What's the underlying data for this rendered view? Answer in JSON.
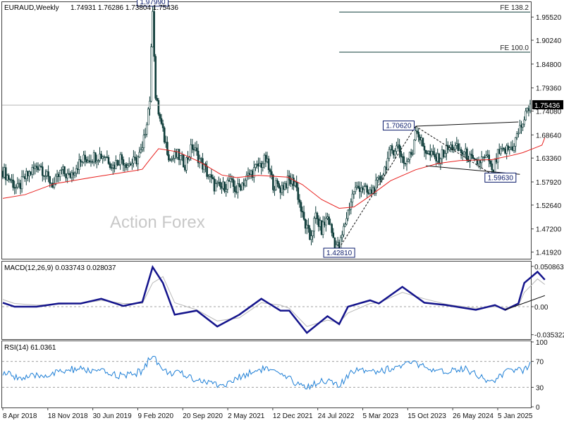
{
  "chart_data": [
    {
      "type": "candlestick",
      "symbol": "EURAUD",
      "timeframe": "Weekly",
      "header": {
        "symbol_timeframe": "EURAUD,Weekly",
        "ohlc": "1.74931 1.76286 1.73804 1.75436"
      },
      "last_price": 1.75436,
      "current_price_label": "1.75436",
      "y_range": [
        1.4056,
        1.9877
      ],
      "y_ticks": [
        "1.95520",
        "1.90240",
        "1.84800",
        "1.79360",
        "1.74080",
        "1.68640",
        "1.63360",
        "1.57920",
        "1.52640",
        "1.47200",
        "1.41920"
      ],
      "x_ticks": [
        "8 Apr 2018",
        "18 Nov 2018",
        "30 Jun 2019",
        "9 Feb 2020",
        "20 Sep 2020",
        "2 May 2021",
        "12 Dec 2021",
        "24 Jul 2022",
        "5 Mar 2023",
        "15 Oct 2023",
        "26 May 2024",
        "5 Jan 2025"
      ],
      "x_dates": [
        "2018-04-08",
        "2025-02-23"
      ],
      "close_path": [
        {
          "date": "2018-04-08",
          "close": 1.604
        },
        {
          "date": "2018-05-13",
          "close": 1.585
        },
        {
          "date": "2018-06-17",
          "close": 1.562
        },
        {
          "date": "2018-07-22",
          "close": 1.588
        },
        {
          "date": "2018-08-26",
          "close": 1.605
        },
        {
          "date": "2018-09-30",
          "close": 1.62
        },
        {
          "date": "2018-11-04",
          "close": 1.589
        },
        {
          "date": "2018-12-09",
          "close": 1.572
        },
        {
          "date": "2019-01-13",
          "close": 1.605
        },
        {
          "date": "2019-02-17",
          "close": 1.59
        },
        {
          "date": "2019-03-24",
          "close": 1.615
        },
        {
          "date": "2019-04-28",
          "close": 1.63
        },
        {
          "date": "2019-06-02",
          "close": 1.635
        },
        {
          "date": "2019-07-07",
          "close": 1.64
        },
        {
          "date": "2019-08-11",
          "close": 1.64
        },
        {
          "date": "2019-09-15",
          "close": 1.615
        },
        {
          "date": "2019-10-20",
          "close": 1.635
        },
        {
          "date": "2019-11-24",
          "close": 1.62
        },
        {
          "date": "2019-12-29",
          "close": 1.625
        },
        {
          "date": "2020-02-02",
          "close": 1.65
        },
        {
          "date": "2020-03-08",
          "close": 1.77
        },
        {
          "date": "2020-03-22",
          "close": 1.9799
        },
        {
          "date": "2020-04-05",
          "close": 1.77
        },
        {
          "date": "2020-05-10",
          "close": 1.69
        },
        {
          "date": "2020-06-14",
          "close": 1.63
        },
        {
          "date": "2020-07-19",
          "close": 1.64
        },
        {
          "date": "2020-08-23",
          "close": 1.62
        },
        {
          "date": "2020-09-27",
          "close": 1.66
        },
        {
          "date": "2020-11-01",
          "close": 1.63
        },
        {
          "date": "2020-12-06",
          "close": 1.6
        },
        {
          "date": "2021-01-10",
          "close": 1.57
        },
        {
          "date": "2021-02-14",
          "close": 1.565
        },
        {
          "date": "2021-03-21",
          "close": 1.58
        },
        {
          "date": "2021-04-25",
          "close": 1.56
        },
        {
          "date": "2021-05-30",
          "close": 1.58
        },
        {
          "date": "2021-07-04",
          "close": 1.6
        },
        {
          "date": "2021-08-08",
          "close": 1.615
        },
        {
          "date": "2021-09-12",
          "close": 1.63
        },
        {
          "date": "2021-10-17",
          "close": 1.575
        },
        {
          "date": "2021-11-21",
          "close": 1.565
        },
        {
          "date": "2021-12-26",
          "close": 1.58
        },
        {
          "date": "2022-01-30",
          "close": 1.58
        },
        {
          "date": "2022-03-06",
          "close": 1.5
        },
        {
          "date": "2022-04-10",
          "close": 1.45
        },
        {
          "date": "2022-05-08",
          "close": 1.5
        },
        {
          "date": "2022-06-05",
          "close": 1.47
        },
        {
          "date": "2022-07-03",
          "close": 1.5
        },
        {
          "date": "2022-08-07",
          "close": 1.44
        },
        {
          "date": "2022-08-28",
          "close": 1.4281
        },
        {
          "date": "2022-10-02",
          "close": 1.5
        },
        {
          "date": "2022-11-06",
          "close": 1.56
        },
        {
          "date": "2022-12-11",
          "close": 1.57
        },
        {
          "date": "2023-01-15",
          "close": 1.55
        },
        {
          "date": "2023-02-19",
          "close": 1.57
        },
        {
          "date": "2023-03-26",
          "close": 1.6
        },
        {
          "date": "2023-04-30",
          "close": 1.65
        },
        {
          "date": "2023-06-04",
          "close": 1.66
        },
        {
          "date": "2023-07-09",
          "close": 1.62
        },
        {
          "date": "2023-08-13",
          "close": 1.65
        },
        {
          "date": "2023-08-27",
          "close": 1.7062
        },
        {
          "date": "2023-10-01",
          "close": 1.66
        },
        {
          "date": "2023-11-05",
          "close": 1.64
        },
        {
          "date": "2023-12-10",
          "close": 1.63
        },
        {
          "date": "2024-01-14",
          "close": 1.65
        },
        {
          "date": "2024-02-18",
          "close": 1.66
        },
        {
          "date": "2024-03-24",
          "close": 1.65
        },
        {
          "date": "2024-04-28",
          "close": 1.64
        },
        {
          "date": "2024-06-02",
          "close": 1.62
        },
        {
          "date": "2024-07-07",
          "close": 1.63
        },
        {
          "date": "2024-08-11",
          "close": 1.63
        },
        {
          "date": "2024-08-25",
          "close": 1.5963
        },
        {
          "date": "2024-09-22",
          "close": 1.64
        },
        {
          "date": "2024-10-27",
          "close": 1.65
        },
        {
          "date": "2024-12-01",
          "close": 1.66
        },
        {
          "date": "2025-01-05",
          "close": 1.7
        },
        {
          "date": "2025-02-02",
          "close": 1.73
        },
        {
          "date": "2025-03-02",
          "close": 1.77
        },
        {
          "date": "2025-03-30",
          "close": 1.85
        },
        {
          "date": "2025-04-20",
          "close": 1.79
        },
        {
          "date": "2025-05-04",
          "close": 1.75436
        }
      ],
      "ma_path": [
        {
          "date": "2018-04-08",
          "value": 1.5417
        },
        {
          "date": "2018-07-22",
          "value": 1.55
        },
        {
          "date": "2018-12-09",
          "value": 1.575
        },
        {
          "date": "2019-06-02",
          "value": 1.589
        },
        {
          "date": "2019-12-29",
          "value": 1.605
        },
        {
          "date": "2020-02-02",
          "value": 1.608
        },
        {
          "date": "2020-03-08",
          "value": 1.63
        },
        {
          "date": "2020-04-19",
          "value": 1.655
        },
        {
          "date": "2020-07-19",
          "value": 1.648
        },
        {
          "date": "2020-11-01",
          "value": 1.625
        },
        {
          "date": "2021-02-14",
          "value": 1.595
        },
        {
          "date": "2021-04-25",
          "value": 1.589
        },
        {
          "date": "2021-08-08",
          "value": 1.594
        },
        {
          "date": "2021-12-26",
          "value": 1.59
        },
        {
          "date": "2022-03-06",
          "value": 1.573
        },
        {
          "date": "2022-06-05",
          "value": 1.539
        },
        {
          "date": "2022-08-28",
          "value": 1.519
        },
        {
          "date": "2022-11-06",
          "value": 1.522
        },
        {
          "date": "2023-01-15",
          "value": 1.545
        },
        {
          "date": "2023-04-30",
          "value": 1.582
        },
        {
          "date": "2023-08-27",
          "value": 1.607
        },
        {
          "date": "2023-12-10",
          "value": 1.621
        },
        {
          "date": "2024-03-24",
          "value": 1.628
        },
        {
          "date": "2024-08-25",
          "value": 1.63
        },
        {
          "date": "2024-12-01",
          "value": 1.64
        },
        {
          "date": "2025-01-19",
          "value": 1.646
        },
        {
          "date": "2025-04-20",
          "value": 1.663
        },
        {
          "date": "2025-05-04",
          "value": 1.68
        }
      ],
      "annotations": [
        {
          "label": "1.97990",
          "date": "2020-03-22",
          "value": 1.9799,
          "kind": "high"
        },
        {
          "label": "1.42810",
          "date": "2022-08-28",
          "value": 1.4281,
          "kind": "low"
        },
        {
          "label": "1.70620",
          "date": "2023-08-27",
          "value": 1.7062,
          "kind": "high"
        },
        {
          "label": "1.59630",
          "date": "2024-08-25",
          "value": 1.5963,
          "kind": "low"
        }
      ],
      "projection_lines": [
        {
          "label": "FE 138.2",
          "value": 1.9665,
          "from_date": "2022-08-28"
        },
        {
          "label": "FE 100.0",
          "value": 1.8751,
          "from_date": "2022-08-28"
        }
      ],
      "trendlines": [
        {
          "from": {
            "date": "2023-08-27",
            "value": 1.7062
          },
          "to": {
            "date": "2024-12-29",
            "value": 1.716
          },
          "style": "solid"
        },
        {
          "from": {
            "date": "2023-10-15",
            "value": 1.616
          },
          "to": {
            "date": "2025-01-05",
            "value": 1.5965
          },
          "style": "solid"
        },
        {
          "from": {
            "date": "2022-08-28",
            "value": 1.4281
          },
          "to": {
            "date": "2023-08-27",
            "value": 1.7062
          },
          "style": "dashed"
        },
        {
          "from": {
            "date": "2023-08-27",
            "value": 1.7062
          },
          "to": {
            "date": "2024-08-25",
            "value": 1.5963
          },
          "style": "dashed"
        }
      ],
      "watermark": "Action Forex"
    },
    {
      "type": "line",
      "title": "MACD(12,26,9) 0.033743 0.028037",
      "y_range": [
        -0.04,
        0.056
      ],
      "y_ticks": [
        "0.050863",
        "0.00",
        "-0.035322"
      ],
      "macd_path": [
        {
          "date": "2018-04-08",
          "value": 0.005
        },
        {
          "date": "2018-06-03",
          "value": 0.0
        },
        {
          "date": "2018-09-16",
          "value": 0.0
        },
        {
          "date": "2018-12-30",
          "value": 0.004
        },
        {
          "date": "2019-04-14",
          "value": 0.004
        },
        {
          "date": "2019-07-21",
          "value": 0.01
        },
        {
          "date": "2019-11-03",
          "value": 0.001
        },
        {
          "date": "2020-02-02",
          "value": 0.006
        },
        {
          "date": "2020-03-22",
          "value": 0.05
        },
        {
          "date": "2020-05-10",
          "value": 0.03
        },
        {
          "date": "2020-07-05",
          "value": -0.01
        },
        {
          "date": "2020-10-18",
          "value": -0.005
        },
        {
          "date": "2021-01-24",
          "value": -0.025
        },
        {
          "date": "2021-05-09",
          "value": -0.01
        },
        {
          "date": "2021-08-22",
          "value": 0.01
        },
        {
          "date": "2021-11-21",
          "value": -0.005
        },
        {
          "date": "2022-01-02",
          "value": -0.005
        },
        {
          "date": "2022-03-27",
          "value": -0.033
        },
        {
          "date": "2022-07-03",
          "value": -0.012
        },
        {
          "date": "2022-08-28",
          "value": -0.022
        },
        {
          "date": "2022-10-09",
          "value": 0.0
        },
        {
          "date": "2023-01-22",
          "value": 0.008
        },
        {
          "date": "2023-03-05",
          "value": 0.004
        },
        {
          "date": "2023-06-25",
          "value": 0.025
        },
        {
          "date": "2023-10-08",
          "value": 0.005
        },
        {
          "date": "2024-01-21",
          "value": 0.002
        },
        {
          "date": "2024-06-09",
          "value": -0.004
        },
        {
          "date": "2024-09-08",
          "value": 0.002
        },
        {
          "date": "2024-10-27",
          "value": -0.004
        },
        {
          "date": "2024-12-29",
          "value": 0.004
        },
        {
          "date": "2025-01-26",
          "value": 0.03
        },
        {
          "date": "2025-03-30",
          "value": 0.044
        },
        {
          "date": "2025-05-04",
          "value": 0.034
        }
      ],
      "signal_path": [
        {
          "date": "2018-04-08",
          "value": 0.009
        },
        {
          "date": "2018-06-03",
          "value": 0.004
        },
        {
          "date": "2018-09-16",
          "value": 0.002
        },
        {
          "date": "2018-12-30",
          "value": 0.003
        },
        {
          "date": "2019-04-14",
          "value": 0.004
        },
        {
          "date": "2019-07-21",
          "value": 0.008
        },
        {
          "date": "2019-11-03",
          "value": 0.004
        },
        {
          "date": "2020-02-02",
          "value": 0.004
        },
        {
          "date": "2020-03-22",
          "value": 0.03
        },
        {
          "date": "2020-05-10",
          "value": 0.038
        },
        {
          "date": "2020-07-05",
          "value": 0.005
        },
        {
          "date": "2020-10-18",
          "value": -0.004
        },
        {
          "date": "2021-01-24",
          "value": -0.018
        },
        {
          "date": "2021-05-09",
          "value": -0.014
        },
        {
          "date": "2021-08-22",
          "value": 0.005
        },
        {
          "date": "2021-11-21",
          "value": 0.002
        },
        {
          "date": "2022-01-02",
          "value": -0.002
        },
        {
          "date": "2022-03-27",
          "value": -0.025
        },
        {
          "date": "2022-07-03",
          "value": -0.017
        },
        {
          "date": "2022-08-28",
          "value": -0.02
        },
        {
          "date": "2022-10-09",
          "value": -0.008
        },
        {
          "date": "2023-01-22",
          "value": 0.004
        },
        {
          "date": "2023-03-05",
          "value": 0.005
        },
        {
          "date": "2023-06-25",
          "value": 0.018
        },
        {
          "date": "2023-10-08",
          "value": 0.01
        },
        {
          "date": "2024-01-21",
          "value": 0.003
        },
        {
          "date": "2024-06-09",
          "value": -0.002
        },
        {
          "date": "2024-09-08",
          "value": 0.0
        },
        {
          "date": "2024-10-27",
          "value": -0.002
        },
        {
          "date": "2024-12-29",
          "value": 0.002
        },
        {
          "date": "2025-01-26",
          "value": 0.018
        },
        {
          "date": "2025-03-30",
          "value": 0.035
        },
        {
          "date": "2025-05-04",
          "value": 0.028
        }
      ],
      "trendline": {
        "from": {
          "date": "2024-10-27",
          "value": -0.004
        },
        "to": {
          "date": "2025-05-04",
          "value": 0.014
        }
      }
    },
    {
      "type": "line",
      "title": "RSI(14) 61.0361",
      "y_range": [
        0,
        100
      ],
      "y_ticks": [
        "100",
        "70",
        "30",
        "0"
      ],
      "levels": [
        70,
        30
      ],
      "rsi_path": [
        {
          "date": "2018-04-08",
          "value": 52
        },
        {
          "date": "2018-07-15",
          "value": 44
        },
        {
          "date": "2018-11-18",
          "value": 50
        },
        {
          "date": "2019-03-17",
          "value": 58
        },
        {
          "date": "2019-07-14",
          "value": 54
        },
        {
          "date": "2019-11-10",
          "value": 47
        },
        {
          "date": "2020-02-02",
          "value": 55
        },
        {
          "date": "2020-03-22",
          "value": 82
        },
        {
          "date": "2020-05-10",
          "value": 55
        },
        {
          "date": "2020-08-09",
          "value": 50
        },
        {
          "date": "2020-11-29",
          "value": 38
        },
        {
          "date": "2021-02-28",
          "value": 33
        },
        {
          "date": "2021-06-06",
          "value": 50
        },
        {
          "date": "2021-09-05",
          "value": 60
        },
        {
          "date": "2021-12-12",
          "value": 45
        },
        {
          "date": "2022-03-27",
          "value": 30
        },
        {
          "date": "2022-06-12",
          "value": 42
        },
        {
          "date": "2022-08-28",
          "value": 32
        },
        {
          "date": "2022-11-20",
          "value": 60
        },
        {
          "date": "2023-03-05",
          "value": 55
        },
        {
          "date": "2023-08-27",
          "value": 68
        },
        {
          "date": "2023-11-26",
          "value": 52
        },
        {
          "date": "2024-04-14",
          "value": 60
        },
        {
          "date": "2024-08-25",
          "value": 38
        },
        {
          "date": "2024-11-24",
          "value": 58
        },
        {
          "date": "2025-01-19",
          "value": 55
        },
        {
          "date": "2025-03-30",
          "value": 79
        },
        {
          "date": "2025-05-04",
          "value": 61
        }
      ]
    }
  ]
}
